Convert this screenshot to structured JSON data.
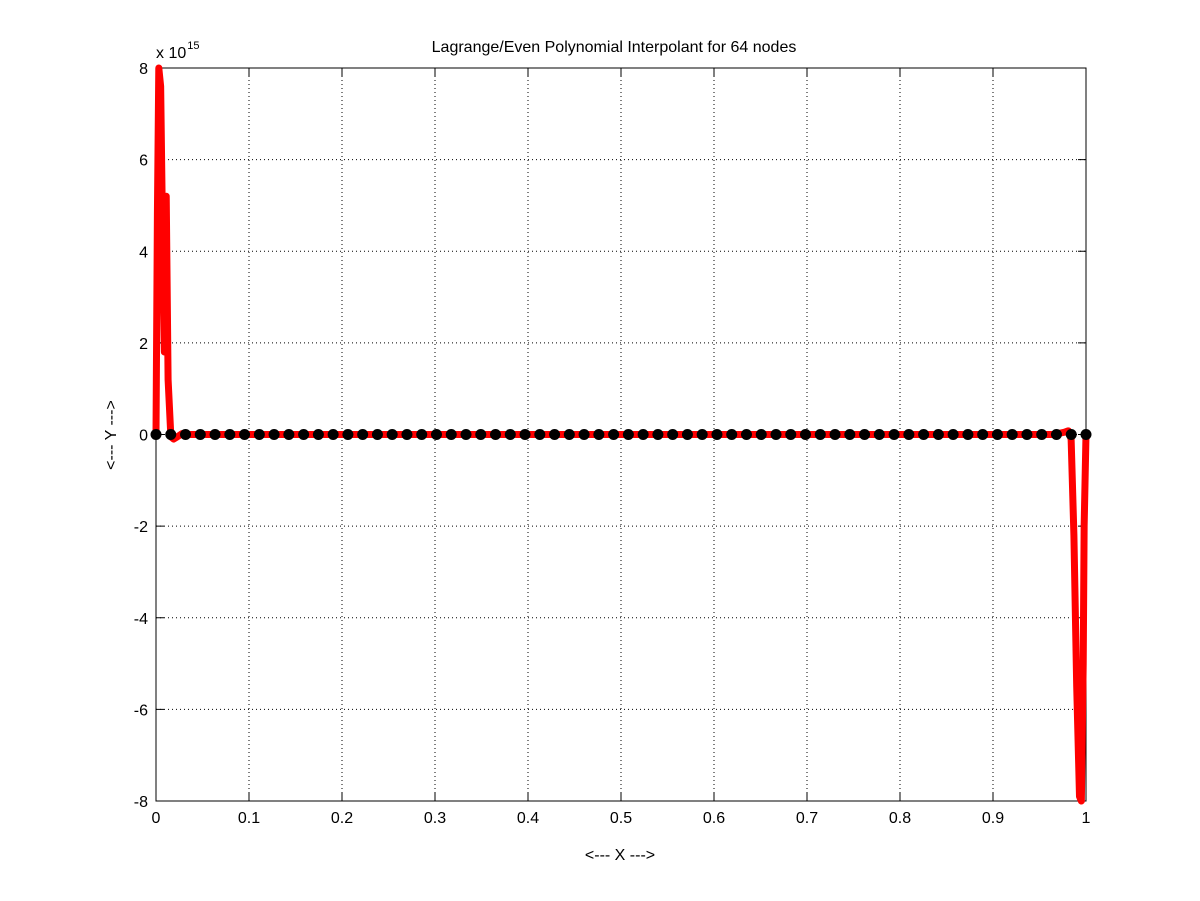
{
  "chart_data": {
    "type": "line",
    "title": "Lagrange/Even Polynomial Interpolant for 64 nodes",
    "xlabel": "<--- X --->",
    "ylabel": "<--- Y --->",
    "y_exponent_prefix": "x 10",
    "y_exponent_power": "15",
    "xlim": [
      0,
      1
    ],
    "ylim": [
      -8,
      8
    ],
    "y_scale_factor": 1000000000000000.0,
    "grid": true,
    "x_ticks": [
      0,
      0.1,
      0.2,
      0.3,
      0.4,
      0.5,
      0.6,
      0.7,
      0.8,
      0.9,
      1
    ],
    "x_tick_labels": [
      "0",
      "0.1",
      "0.2",
      "0.3",
      "0.4",
      "0.5",
      "0.6",
      "0.7",
      "0.8",
      "0.9",
      "1"
    ],
    "y_ticks": [
      -8,
      -6,
      -4,
      -2,
      0,
      2,
      4,
      6,
      8
    ],
    "y_tick_labels": [
      "-8",
      "-6",
      "-4",
      "-2",
      "0",
      "2",
      "4",
      "6",
      "8"
    ],
    "series": [
      {
        "kind": "interpolant",
        "color": "#ff0000",
        "points": [
          [
            0.0,
            0
          ],
          [
            0.0015,
            4.8
          ],
          [
            0.003,
            8.0
          ],
          [
            0.005,
            7.6
          ],
          [
            0.007,
            4.5
          ],
          [
            0.009,
            1.8
          ],
          [
            0.011,
            5.2
          ],
          [
            0.013,
            1.2
          ],
          [
            0.016,
            -0.05
          ],
          [
            0.019,
            -0.1
          ],
          [
            0.023,
            -0.05
          ],
          [
            0.028,
            0.02
          ],
          [
            0.035,
            0
          ],
          [
            0.05,
            0
          ],
          [
            0.1,
            0
          ],
          [
            0.2,
            0
          ],
          [
            0.3,
            0
          ],
          [
            0.4,
            0
          ],
          [
            0.5,
            0
          ],
          [
            0.6,
            0
          ],
          [
            0.7,
            0
          ],
          [
            0.8,
            0
          ],
          [
            0.9,
            0
          ],
          [
            0.95,
            0
          ],
          [
            0.965,
            0
          ],
          [
            0.972,
            0.03
          ],
          [
            0.977,
            0.05
          ],
          [
            0.981,
            0.08
          ],
          [
            0.984,
            -0.1
          ],
          [
            0.987,
            -2.2
          ],
          [
            0.99,
            -5.5
          ],
          [
            0.993,
            -7.9
          ],
          [
            0.995,
            -8.0
          ],
          [
            0.997,
            -5.0
          ],
          [
            0.998,
            -2.0
          ],
          [
            1.0,
            0
          ]
        ]
      },
      {
        "kind": "nodes",
        "color": "#000000",
        "node_count": 64,
        "x_range": [
          0,
          1
        ],
        "y_value": 0
      }
    ]
  }
}
